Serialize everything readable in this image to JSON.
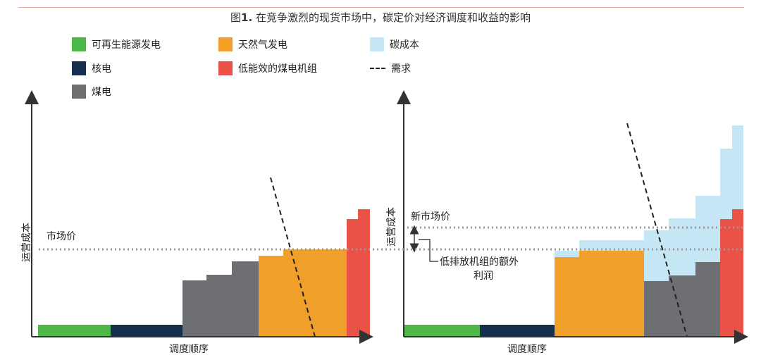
{
  "title": {
    "prefix": "图",
    "number": "1.",
    "text": " 在竞争激烈的现货市场中，碳定价对经济调度和收益的影响"
  },
  "legend": [
    {
      "label": "可再生能源发电",
      "color": "#4db848"
    },
    {
      "label": "天然气发电",
      "color": "#f0a02a"
    },
    {
      "label": "碳成本",
      "color": "#c5e6f5"
    },
    {
      "label": "核电",
      "color": "#15304e"
    },
    {
      "label": "低能效的煤电机组",
      "color": "#ea5147"
    },
    {
      "label": "需求",
      "color": "#222222"
    },
    {
      "label": "煤电",
      "color": "#6e6f72"
    }
  ],
  "left_panel": {
    "y_label": "运营成本",
    "x_label": "调度顺序",
    "market_price_label": "市场价"
  },
  "right_panel": {
    "y_label": "运营成本",
    "x_label": "调度顺序",
    "new_price_label": "新市场价",
    "annotation_line1": "低排放机组的额外",
    "annotation_line2": "利润"
  },
  "colors": {
    "renewable": "#4db848",
    "nuclear": "#15304e",
    "coal": "#6e6f72",
    "gas": "#f0a02a",
    "inefficient_coal": "#ea5147",
    "carbon": "#c5e6f5",
    "price_line": "#9a9a9a",
    "axis": "#333333"
  }
}
